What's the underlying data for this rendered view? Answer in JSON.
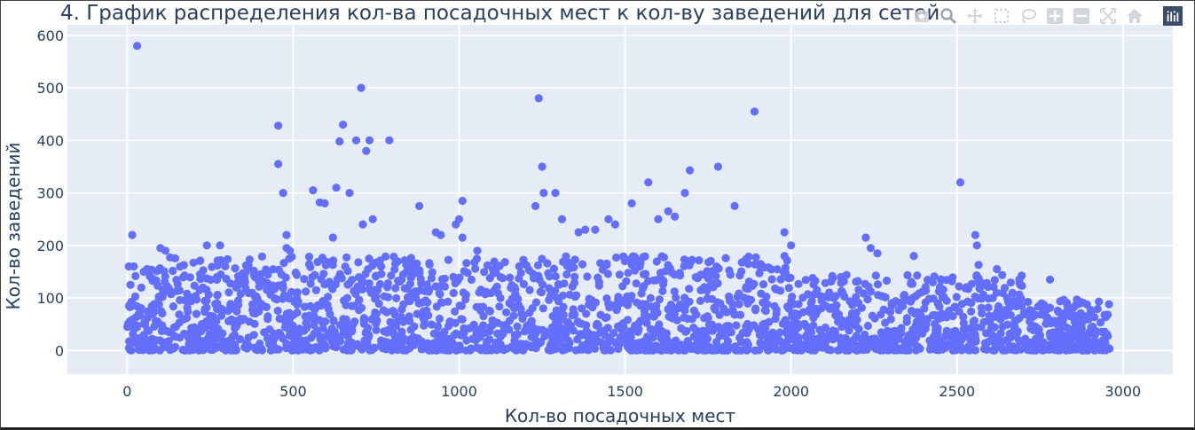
{
  "chart_data": {
    "type": "scatter",
    "title": "4. График распределения кол-ва посадочных мест к кол-ву заведений для сетей",
    "xlabel": "Кол-во посадочных мест",
    "ylabel": "Кол-во заведений",
    "xlim": [
      -180,
      3150
    ],
    "ylim": [
      -45,
      620
    ],
    "x_ticks": [
      0,
      500,
      1000,
      1500,
      2000,
      2500,
      3000
    ],
    "y_ticks": [
      0,
      100,
      200,
      300,
      400,
      500,
      600
    ],
    "grid": true,
    "legend": "none",
    "marker_color": "#636efa",
    "plot_bg": "#e5ecf6",
    "outliers": [
      [
        30,
        580
      ],
      [
        15,
        220
      ],
      [
        5,
        160
      ],
      [
        10,
        125
      ],
      [
        20,
        160
      ],
      [
        50,
        150
      ],
      [
        60,
        155
      ],
      [
        100,
        195
      ],
      [
        115,
        190
      ],
      [
        240,
        200
      ],
      [
        280,
        200
      ],
      [
        455,
        428
      ],
      [
        455,
        355
      ],
      [
        470,
        300
      ],
      [
        480,
        220
      ],
      [
        480,
        195
      ],
      [
        490,
        190
      ],
      [
        560,
        305
      ],
      [
        580,
        282
      ],
      [
        595,
        280
      ],
      [
        620,
        215
      ],
      [
        630,
        310
      ],
      [
        640,
        398
      ],
      [
        650,
        430
      ],
      [
        670,
        300
      ],
      [
        690,
        400
      ],
      [
        705,
        500
      ],
      [
        720,
        380
      ],
      [
        730,
        400
      ],
      [
        740,
        250
      ],
      [
        710,
        240
      ],
      [
        790,
        400
      ],
      [
        880,
        275
      ],
      [
        930,
        225
      ],
      [
        945,
        220
      ],
      [
        990,
        240
      ],
      [
        1000,
        250
      ],
      [
        1010,
        285
      ],
      [
        1010,
        215
      ],
      [
        1055,
        190
      ],
      [
        1230,
        275
      ],
      [
        1240,
        480
      ],
      [
        1250,
        350
      ],
      [
        1255,
        300
      ],
      [
        1290,
        300
      ],
      [
        1310,
        250
      ],
      [
        1360,
        225
      ],
      [
        1380,
        230
      ],
      [
        1410,
        230
      ],
      [
        1450,
        250
      ],
      [
        1470,
        240
      ],
      [
        1520,
        280
      ],
      [
        1570,
        320
      ],
      [
        1600,
        250
      ],
      [
        1630,
        265
      ],
      [
        1650,
        255
      ],
      [
        1680,
        300
      ],
      [
        1695,
        343
      ],
      [
        1780,
        350
      ],
      [
        1830,
        275
      ],
      [
        1890,
        455
      ],
      [
        1980,
        225
      ],
      [
        2000,
        200
      ],
      [
        2225,
        215
      ],
      [
        2240,
        195
      ],
      [
        2260,
        185
      ],
      [
        2370,
        180
      ],
      [
        2510,
        320
      ],
      [
        2555,
        220
      ],
      [
        2560,
        200
      ],
      [
        2565,
        163
      ],
      [
        2620,
        155
      ],
      [
        2780,
        135
      ]
    ],
    "bulk_points": 2400,
    "bulk_range": {
      "x": [
        0,
        2960
      ],
      "y": [
        0,
        180
      ]
    }
  },
  "modebar": {
    "icons": [
      "camera-icon",
      "zoom-icon",
      "pan-icon",
      "box-select-icon",
      "lasso-icon",
      "zoom-in-icon",
      "zoom-out-icon",
      "autoscale-icon",
      "reset-axes-icon",
      "plotly-logo-icon"
    ]
  }
}
